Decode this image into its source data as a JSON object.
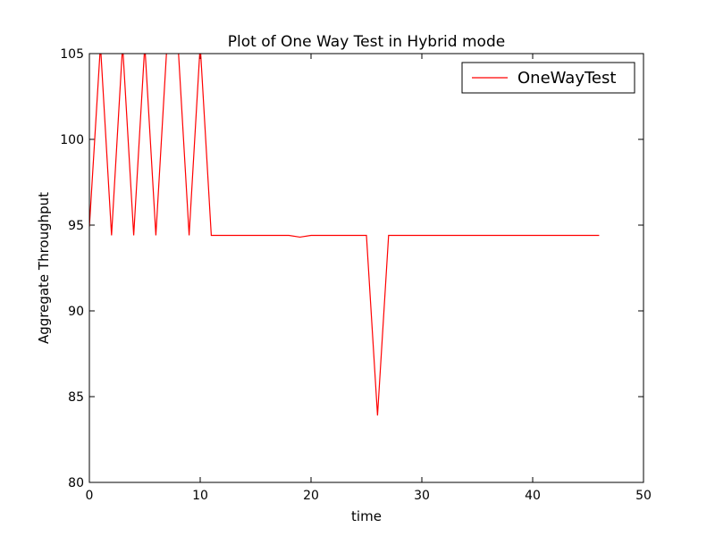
{
  "chart_data": {
    "type": "line",
    "title": "Plot of One Way Test in Hybrid mode",
    "xlabel": "time",
    "ylabel": "Aggregate Throughput",
    "xlim": [
      0,
      50
    ],
    "ylim": [
      80,
      105
    ],
    "xticks": [
      0,
      10,
      20,
      30,
      40,
      50
    ],
    "yticks": [
      80,
      85,
      90,
      95,
      100,
      105
    ],
    "grid": false,
    "legend_position": "top-right",
    "series": [
      {
        "name": "OneWayTest",
        "color": "#ff0000",
        "x": [
          0,
          1,
          2,
          3,
          4,
          5,
          6,
          7,
          8,
          9,
          10,
          11,
          12,
          13,
          14,
          15,
          16,
          17,
          18,
          19,
          20,
          21,
          22,
          23,
          24,
          25,
          26,
          27,
          28,
          29,
          30,
          31,
          32,
          33,
          34,
          35,
          36,
          37,
          38,
          39,
          40,
          41,
          42,
          43,
          44,
          45,
          46
        ],
        "y": [
          94.9,
          105.5,
          94.4,
          105.5,
          94.4,
          105.5,
          94.4,
          105.5,
          105.5,
          94.4,
          105.5,
          94.4,
          94.4,
          94.4,
          94.4,
          94.4,
          94.4,
          94.4,
          94.4,
          94.3,
          94.4,
          94.4,
          94.4,
          94.4,
          94.4,
          94.4,
          83.9,
          94.4,
          94.4,
          94.4,
          94.4,
          94.4,
          94.4,
          94.4,
          94.4,
          94.4,
          94.4,
          94.4,
          94.4,
          94.4,
          94.4,
          94.4,
          94.4,
          94.4,
          94.4,
          94.4,
          94.4
        ]
      }
    ]
  }
}
